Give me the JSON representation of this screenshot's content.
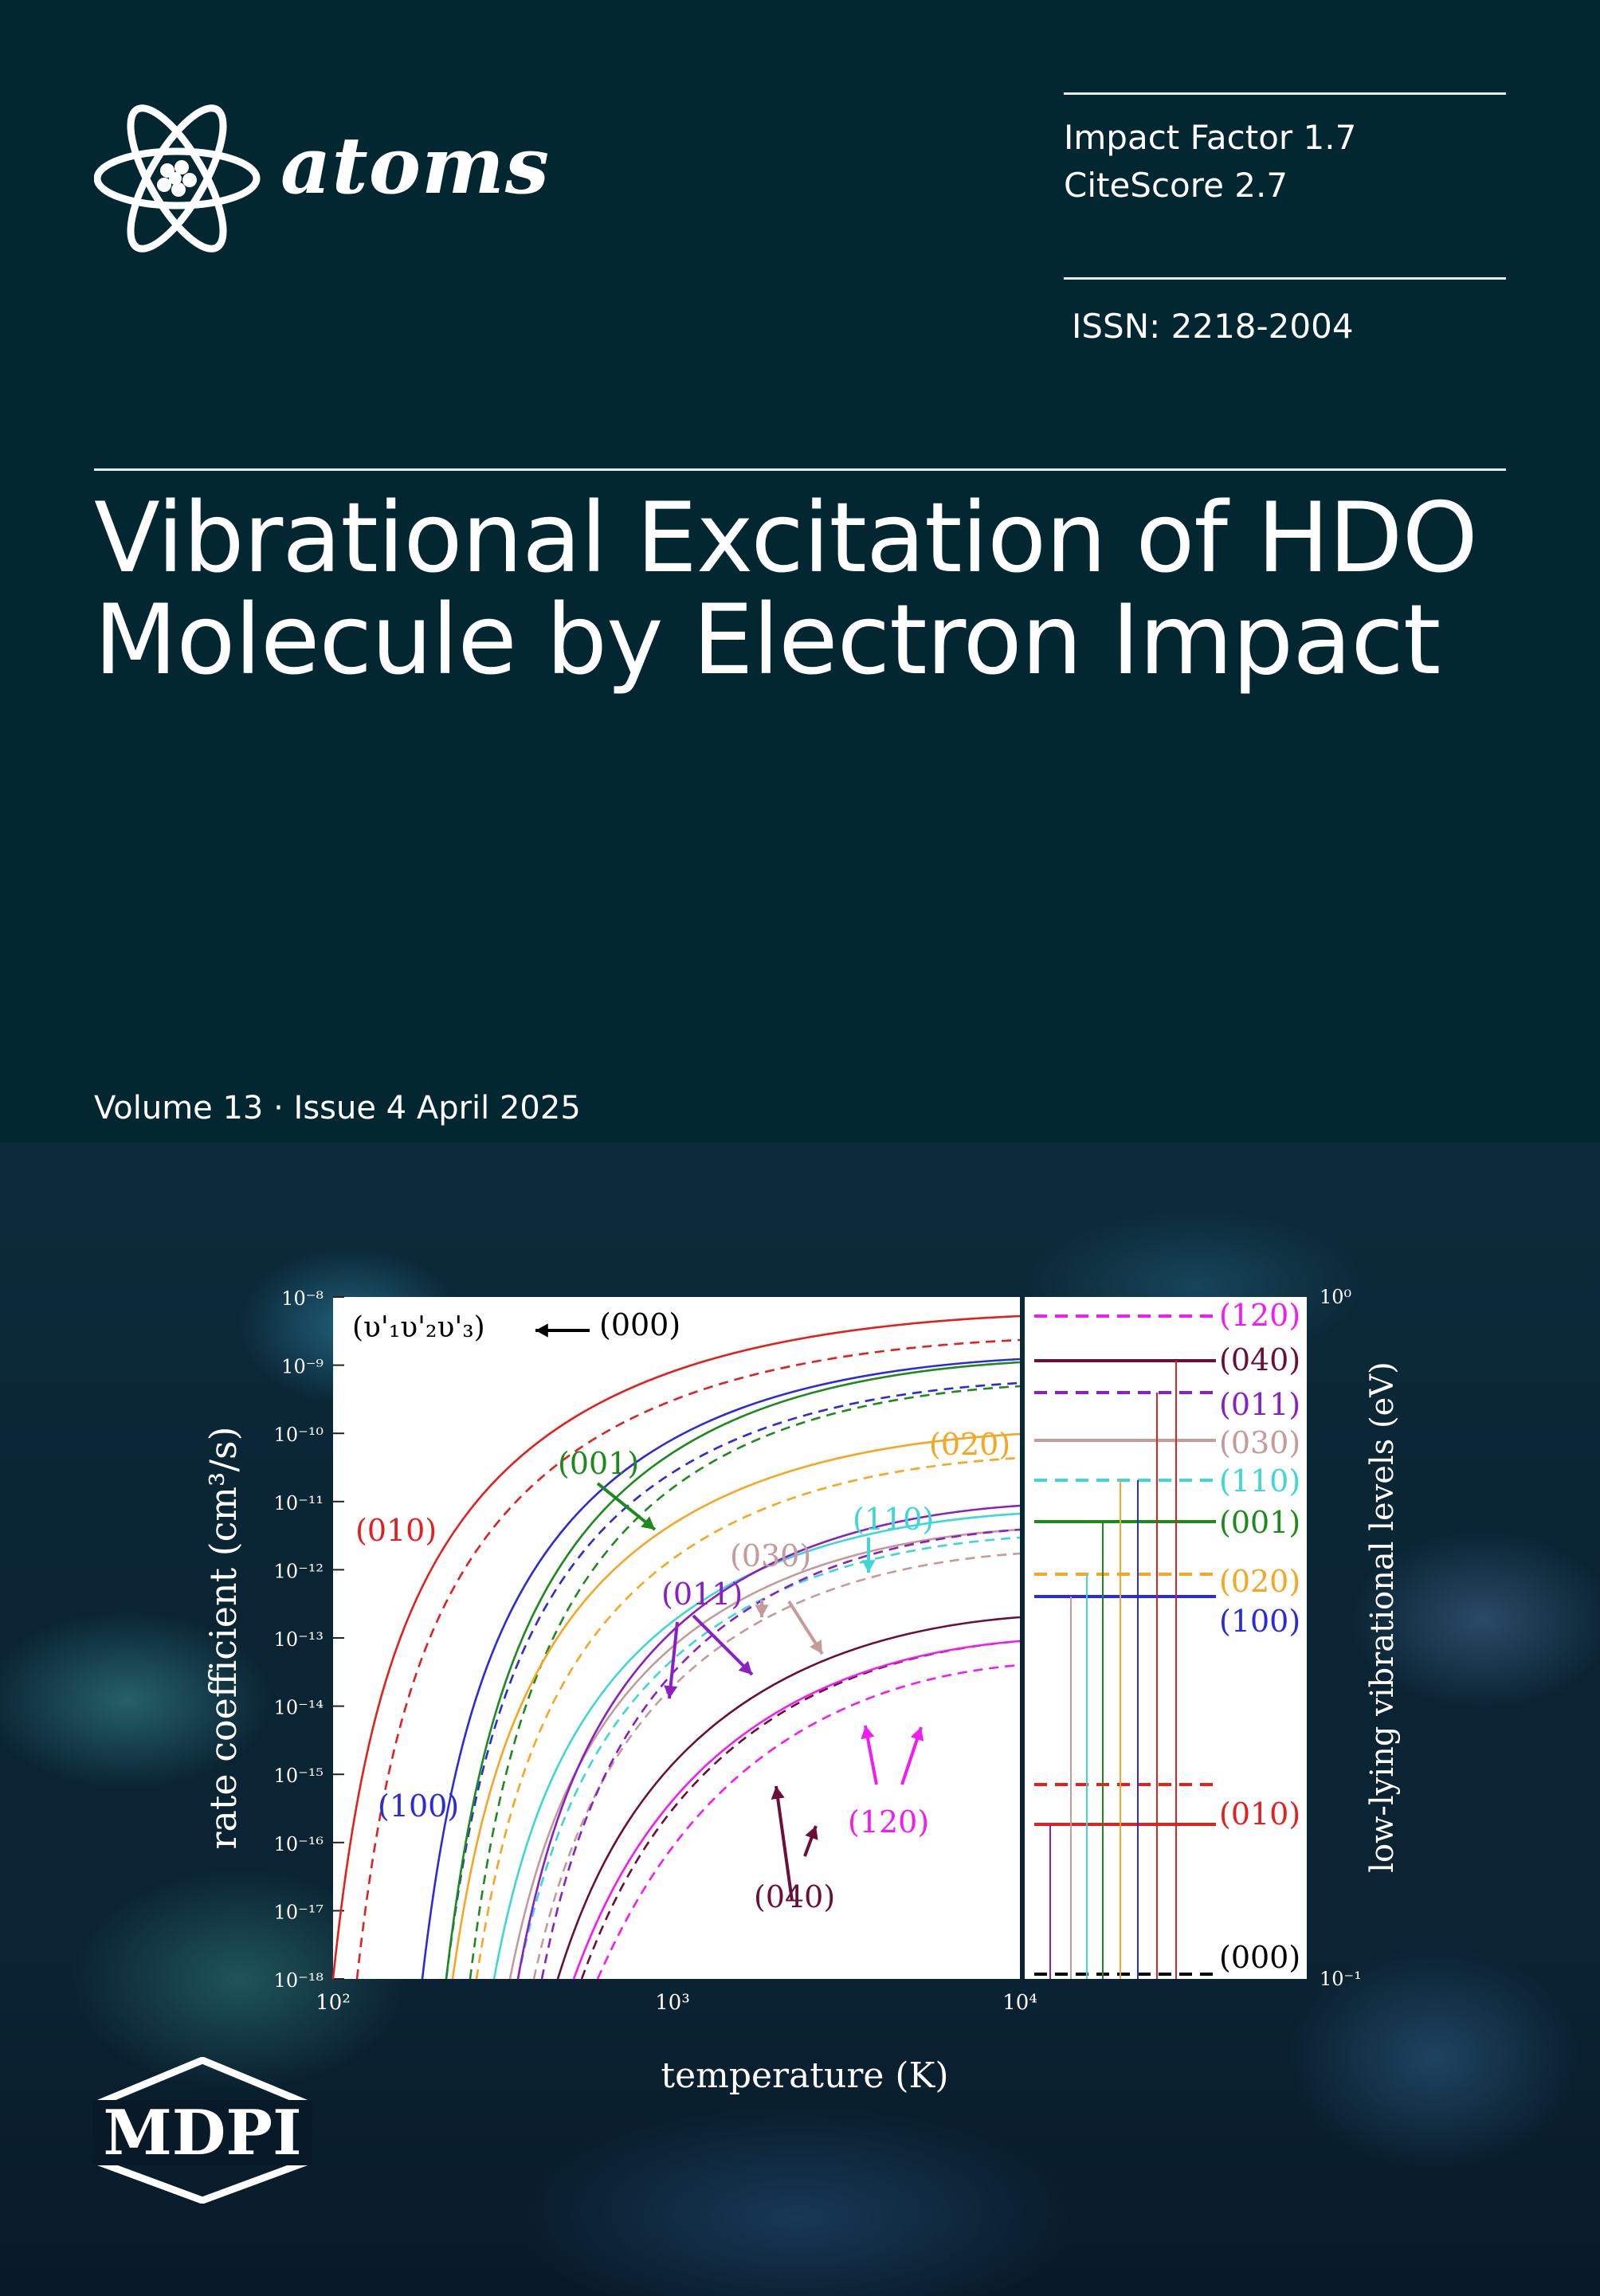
{
  "journal": {
    "name": "atoms"
  },
  "metrics": {
    "impact_factor": "Impact Factor 1.7",
    "citescore": "CiteScore 2.7",
    "issn": "ISSN: 2218-2004"
  },
  "title_lines": [
    "Vibrational Excitation of HDO",
    "Molecule by Electron Impact"
  ],
  "issue_line": "Volume 13 · Issue 4 April 2025",
  "publisher": {
    "name": "MDPI"
  },
  "figure": {
    "left_ylabel": "rate coefficient (cm³/s)",
    "xlabel": "temperature (K)",
    "right_ylabel": "low-lying vibrational levels (eV)",
    "notation": "(υ'₁υ'₂υ'₃)",
    "left_yticks": [
      "10⁻⁸",
      "10⁻⁹",
      "10⁻¹⁰",
      "10⁻¹¹",
      "10⁻¹²",
      "10⁻¹³",
      "10⁻¹⁴",
      "10⁻¹⁵",
      "10⁻¹⁶",
      "10⁻¹⁷",
      "10⁻¹⁸"
    ],
    "xticks": [
      "10²",
      "10³",
      "10⁴"
    ],
    "right_yticks": [
      "10⁰",
      "10⁻¹"
    ],
    "curve_labels": [
      {
        "text": "(000)",
        "color": "#000000"
      },
      {
        "text": "(001)",
        "color": "#1e8a1e"
      },
      {
        "text": "(010)",
        "color": "#e0211d"
      },
      {
        "text": "(020)",
        "color": "#f5a623"
      },
      {
        "text": "(110)",
        "color": "#3fd6d6"
      },
      {
        "text": "(030)",
        "color": "#c59a9a"
      },
      {
        "text": "(011)",
        "color": "#8a1fc2"
      },
      {
        "text": "(100)",
        "color": "#2b2bd9"
      },
      {
        "text": "(040)",
        "color": "#6a1038"
      },
      {
        "text": "(120)",
        "color": "#f21bf2"
      }
    ],
    "level_labels": [
      {
        "text": "(120)",
        "color": "#f21bf2"
      },
      {
        "text": "(040)",
        "color": "#6a1038"
      },
      {
        "text": "(011)",
        "color": "#8a1fc2"
      },
      {
        "text": "(030)",
        "color": "#c59a9a"
      },
      {
        "text": "(110)",
        "color": "#3fd6d6"
      },
      {
        "text": "(001)",
        "color": "#1e8a1e"
      },
      {
        "text": "(020)",
        "color": "#f5a623"
      },
      {
        "text": "(100)",
        "color": "#2b2bd9"
      },
      {
        "text": "(010)",
        "color": "#e0211d"
      },
      {
        "text": "(000)",
        "color": "#000000"
      }
    ]
  }
}
